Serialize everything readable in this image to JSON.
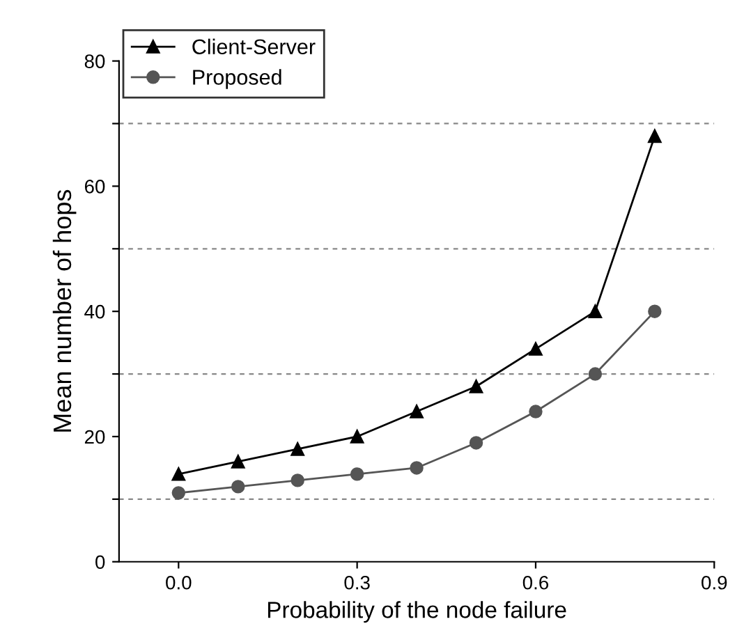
{
  "chart_data": {
    "type": "line",
    "xlabel": "Probability of the node failure",
    "ylabel": "Mean number of hops",
    "x": [
      0.0,
      0.1,
      0.2,
      0.3,
      0.4,
      0.5,
      0.6,
      0.7,
      0.8
    ],
    "series": [
      {
        "name": "Client-Server",
        "color": "#000000",
        "marker": "triangle",
        "values": [
          14,
          16,
          18,
          20,
          24,
          28,
          34,
          40,
          68
        ]
      },
      {
        "name": "Proposed",
        "color": "#555555",
        "marker": "circle",
        "values": [
          11,
          12,
          13,
          14,
          15,
          19,
          24,
          30,
          40
        ]
      }
    ],
    "xlim": [
      -0.1,
      0.9
    ],
    "xticks": [
      {
        "value": 0,
        "label": "0.0"
      },
      0.3,
      0.6,
      0.9
    ],
    "ylim": [
      0,
      80
    ],
    "yticks": [
      0,
      {
        "value": 10,
        "label": null
      },
      20,
      {
        "value": 30,
        "label": null
      },
      40,
      {
        "value": 50,
        "label": null
      },
      60,
      {
        "value": 70,
        "label": null
      },
      80
    ],
    "grid": "y",
    "legend": "top left",
    "line_style": "solid"
  }
}
